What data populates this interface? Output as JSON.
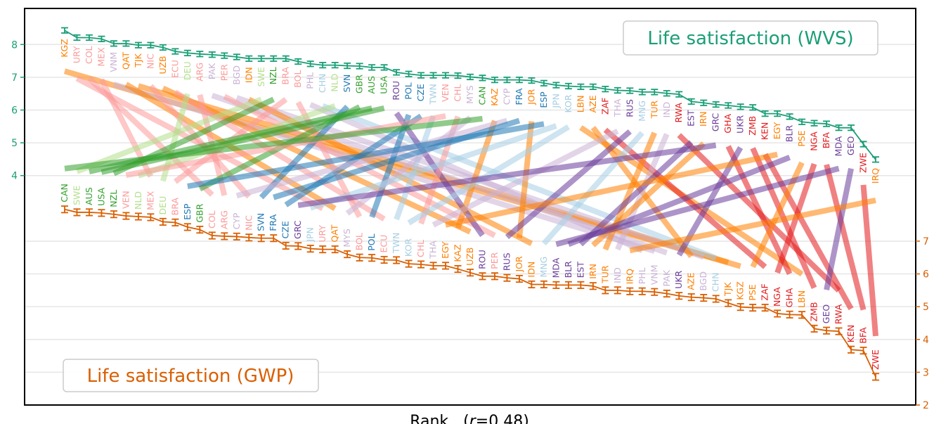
{
  "chart_data": {
    "type": "line",
    "xlabel_prefix": "Rank   (",
    "xlabel_r": "r",
    "xlabel_suffix": "=0.48)",
    "grid": true,
    "left_axis": {
      "ticks": [
        4,
        5,
        6,
        7,
        8
      ],
      "color": "#1b9e77",
      "ylim": [
        -3,
        9.1
      ]
    },
    "right_axis": {
      "ticks": [
        2,
        3,
        4,
        5,
        6,
        7
      ],
      "color": "#d95f02",
      "ylim": [
        2,
        14.1
      ]
    },
    "series": [
      {
        "name": "Life satisfaction (WVS)",
        "color": "#1b9e77",
        "legend": "top-right",
        "yerr": 0.08,
        "countries": [
          "KGZ",
          "URY",
          "COL",
          "MEX",
          "VNM",
          "QAT",
          "TJK",
          "NIC",
          "UZB",
          "ECU",
          "DEU",
          "ARG",
          "PAK",
          "PER",
          "BGD",
          "IDN",
          "SWE",
          "NZL",
          "BRA",
          "BOL",
          "PHL",
          "CHN",
          "NLD",
          "SVN",
          "GBR",
          "AUS",
          "USA",
          "ROU",
          "POL",
          "CZE",
          "TWN",
          "VEN",
          "CHL",
          "MYS",
          "CAN",
          "KAZ",
          "CYP",
          "FRA",
          "JOR",
          "ESP",
          "JPN",
          "KOR",
          "LBN",
          "AZE",
          "ZAF",
          "THA",
          "RUS",
          "MNG",
          "TUR",
          "IND",
          "RWA",
          "EST",
          "IRN",
          "GRC",
          "GHA",
          "UKR",
          "ZMB",
          "KEN",
          "EGY",
          "BLR",
          "PSE",
          "NGA",
          "BFA",
          "MDA",
          "GEO",
          "ZWE",
          "IRQ"
        ],
        "values": [
          8.43,
          8.21,
          8.21,
          8.17,
          8.03,
          8.03,
          7.98,
          7.98,
          7.91,
          7.79,
          7.74,
          7.71,
          7.69,
          7.66,
          7.62,
          7.57,
          7.57,
          7.57,
          7.57,
          7.48,
          7.41,
          7.37,
          7.37,
          7.35,
          7.34,
          7.3,
          7.3,
          7.15,
          7.1,
          7.06,
          7.06,
          7.06,
          7.05,
          7.01,
          6.98,
          6.92,
          6.92,
          6.92,
          6.9,
          6.82,
          6.76,
          6.73,
          6.71,
          6.71,
          6.64,
          6.6,
          6.59,
          6.55,
          6.55,
          6.51,
          6.48,
          6.26,
          6.22,
          6.17,
          6.14,
          6.1,
          6.08,
          5.89,
          5.89,
          5.8,
          5.64,
          5.6,
          5.58,
          5.46,
          5.46,
          4.96,
          4.49
        ]
      },
      {
        "name": "Life satisfaction (GWP)",
        "color": "#d95f02",
        "legend": "bottom-left",
        "yerr": 0.1,
        "countries": [
          "CAN",
          "SWE",
          "AUS",
          "USA",
          "NZL",
          "VEN",
          "NLD",
          "MEX",
          "DEU",
          "BRA",
          "ESP",
          "GBR",
          "COL",
          "ARG",
          "CYP",
          "NIC",
          "SVN",
          "FRA",
          "CZE",
          "GRC",
          "JPN",
          "URY",
          "QAT",
          "MYS",
          "BOL",
          "POL",
          "ECU",
          "TWN",
          "KOR",
          "CHL",
          "THA",
          "EGY",
          "KAZ",
          "UZB",
          "ROU",
          "PER",
          "RUS",
          "JOR",
          "IDN",
          "MNG",
          "MDA",
          "BLR",
          "EST",
          "IRN",
          "TUR",
          "IND",
          "IRQ",
          "PHL",
          "VNM",
          "PAK",
          "UKR",
          "AZE",
          "BGD",
          "CHN",
          "TJK",
          "KGZ",
          "PSE",
          "ZAF",
          "NGA",
          "GHA",
          "LBN",
          "ZMB",
          "GEO",
          "RWA",
          "KEN",
          "BFA",
          "ZWE"
        ],
        "values": [
          7.97,
          7.88,
          7.88,
          7.86,
          7.82,
          7.77,
          7.75,
          7.73,
          7.59,
          7.57,
          7.43,
          7.35,
          7.17,
          7.15,
          7.14,
          7.11,
          7.09,
          7.09,
          6.86,
          6.85,
          6.77,
          6.75,
          6.75,
          6.6,
          6.5,
          6.49,
          6.43,
          6.42,
          6.31,
          6.29,
          6.25,
          6.25,
          6.15,
          6.04,
          5.93,
          5.93,
          5.88,
          5.85,
          5.68,
          5.68,
          5.66,
          5.66,
          5.66,
          5.63,
          5.5,
          5.5,
          5.47,
          5.47,
          5.45,
          5.4,
          5.33,
          5.29,
          5.27,
          5.24,
          5.11,
          4.99,
          4.97,
          4.97,
          4.79,
          4.76,
          4.75,
          4.33,
          4.27,
          4.25,
          3.69,
          3.66,
          2.86
        ]
      }
    ],
    "country_colors": {
      "KGZ": "#ff7f00",
      "QAT": "#ff7f00",
      "TJK": "#ff7f00",
      "UZB": "#ff7f00",
      "IDN": "#ff7f00",
      "KAZ": "#ff7f00",
      "JOR": "#ff7f00",
      "LBN": "#ff7f00",
      "AZE": "#ff7f00",
      "TUR": "#ff7f00",
      "IRN": "#ff7f00",
      "EGY": "#ff7f00",
      "PSE": "#ff7f00",
      "IRQ": "#ff7f00",
      "URY": "#fb9a99",
      "COL": "#fb9a99",
      "MEX": "#fb9a99",
      "NIC": "#fb9a99",
      "ECU": "#fb9a99",
      "ARG": "#fb9a99",
      "PER": "#fb9a99",
      "BRA": "#fb9a99",
      "BOL": "#fb9a99",
      "VEN": "#fb9a99",
      "CHL": "#fb9a99",
      "VNM": "#cab2d6",
      "PAK": "#cab2d6",
      "BGD": "#cab2d6",
      "PHL": "#cab2d6",
      "MYS": "#cab2d6",
      "CYP": "#cab2d6",
      "THA": "#cab2d6",
      "IND": "#cab2d6",
      "DEU": "#b2df8a",
      "SWE": "#b2df8a",
      "NLD": "#b2df8a",
      "NZL": "#33a02c",
      "GBR": "#33a02c",
      "AUS": "#33a02c",
      "USA": "#33a02c",
      "CAN": "#33a02c",
      "SVN": "#1f78b4",
      "POL": "#1f78b4",
      "CZE": "#1f78b4",
      "FRA": "#1f78b4",
      "ESP": "#1f78b4",
      "CHN": "#a6cee3",
      "TWN": "#a6cee3",
      "JPN": "#a6cee3",
      "KOR": "#a6cee3",
      "MNG": "#a6cee3",
      "ROU": "#6a3d9a",
      "RUS": "#6a3d9a",
      "GRC": "#6a3d9a",
      "UKR": "#6a3d9a",
      "BLR": "#6a3d9a",
      "MDA": "#6a3d9a",
      "GEO": "#6a3d9a",
      "EST": "#6a3d9a",
      "ZAF": "#e31a1c",
      "RWA": "#e31a1c",
      "GHA": "#e31a1c",
      "ZMB": "#e31a1c",
      "KEN": "#e31a1c",
      "NGA": "#e31a1c",
      "BFA": "#e31a1c",
      "ZWE": "#e31a1c"
    }
  }
}
